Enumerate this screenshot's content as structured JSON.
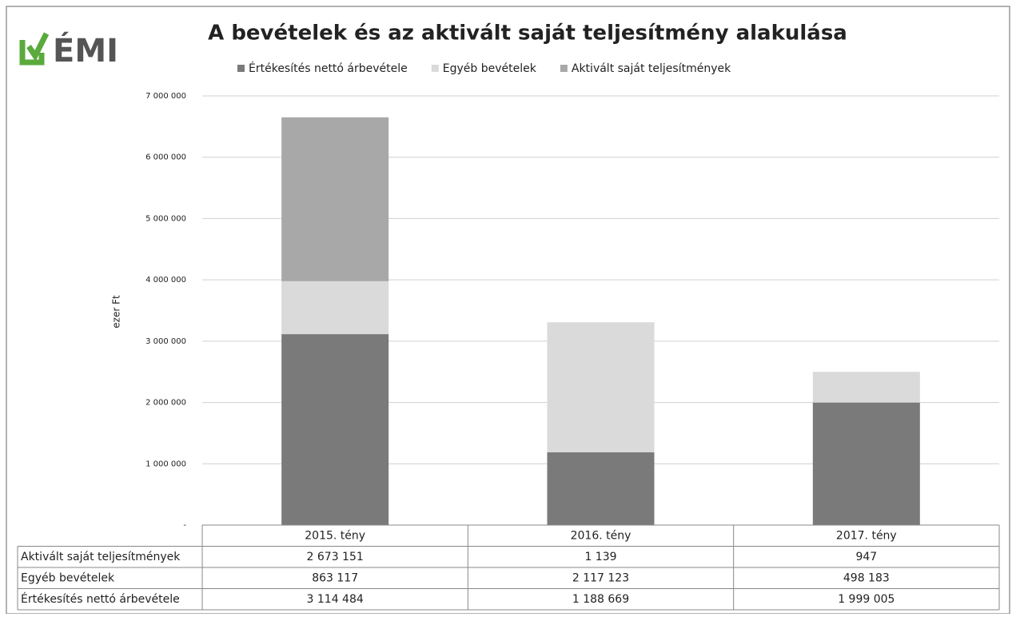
{
  "logo": "ÉMI",
  "chart_data": {
    "type": "stacked_bar",
    "title": "A bevételek és az aktivált saját teljesítmény alakulása",
    "y_label": "ezer Ft",
    "categories": [
      "2015. tény",
      "2016. tény",
      "2017. tény"
    ],
    "series": [
      {
        "name": "Értékesítés nettó árbevétele",
        "color": "#7a7a7a",
        "values": [
          3114484,
          1188669,
          1999005
        ],
        "value_labels": [
          "3 114 484",
          "1 188 669",
          "1 999 005"
        ]
      },
      {
        "name": "Egyéb bevételek",
        "color": "#dadada",
        "values": [
          863117,
          2117123,
          498183
        ],
        "value_labels": [
          "863 117",
          "2 117 123",
          "498 183"
        ]
      },
      {
        "name": "Aktivált saját teljesítmények",
        "color": "#a8a8a8",
        "values": [
          2673151,
          1139,
          947
        ],
        "value_labels": [
          "2 673 151",
          "1 139",
          "947"
        ]
      }
    ],
    "ylim": [
      0,
      7000000
    ],
    "yticks": [
      {
        "value": 0,
        "label": "-"
      },
      {
        "value": 1000000,
        "label": "1 000 000"
      },
      {
        "value": 2000000,
        "label": "2 000 000"
      },
      {
        "value": 3000000,
        "label": "3 000 000"
      },
      {
        "value": 4000000,
        "label": "4 000 000"
      },
      {
        "value": 5000000,
        "label": "5 000 000"
      },
      {
        "value": 6000000,
        "label": "6 000 000"
      },
      {
        "value": 7000000,
        "label": "7 000 000"
      }
    ],
    "grid": true,
    "legend": "top"
  }
}
